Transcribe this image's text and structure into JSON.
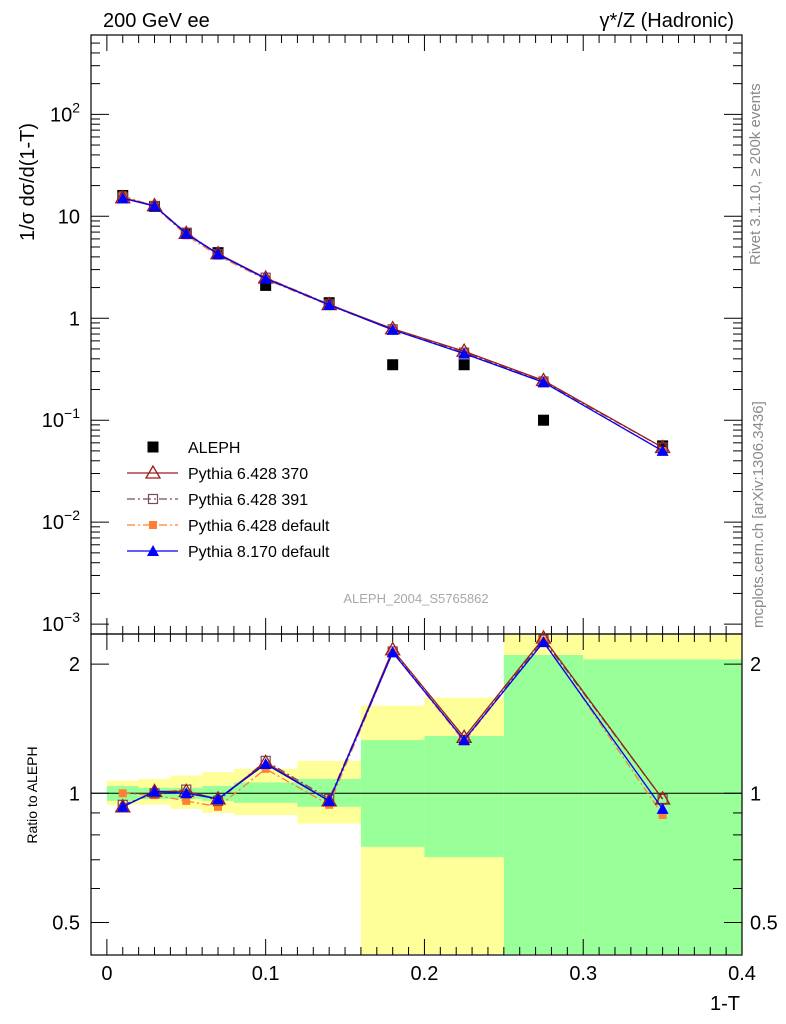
{
  "header": {
    "left": "200 GeV ee",
    "right": "γ*/Z (Hadronic)"
  },
  "side_labels": {
    "top": "Rivet 3.1.10, ≥ 200k events",
    "bottom": "mcplots.cern.ch [arXiv:1306.3436]"
  },
  "watermark": "ALEPH_2004_S5765862",
  "colors": {
    "data": "#000000",
    "p6_370": "#9b1c1c",
    "p6_391": "#7a4a5a",
    "p6_default": "#ff8030",
    "p8_default": "#0000ff",
    "band_outer": "#ffff99",
    "band_inner": "#99ff99"
  },
  "chart_data": [
    {
      "type": "scatter",
      "title": "",
      "ylabel": "1/σ dσ/d(1-T)",
      "xlabel": "",
      "yscale": "log",
      "xlim": [
        -0.01,
        0.4
      ],
      "ylim": [
        0.0008,
        600
      ],
      "yticks": [
        {
          "v": 0.001,
          "base": "10",
          "exp": "−3"
        },
        {
          "v": 0.01,
          "base": "10",
          "exp": "−2"
        },
        {
          "v": 0.1,
          "base": "10",
          "exp": "−1"
        },
        {
          "v": 1,
          "base": "1",
          "exp": ""
        },
        {
          "v": 10,
          "base": "10",
          "exp": ""
        },
        {
          "v": 100,
          "base": "10",
          "exp": "2"
        }
      ],
      "legend_position": "bottom-left",
      "series": [
        {
          "name": "ALEPH",
          "key": "data",
          "marker": "square-filled",
          "line": "none",
          "x": [
            0.01,
            0.03,
            0.05,
            0.07,
            0.1,
            0.14,
            0.18,
            0.225,
            0.275,
            0.35
          ],
          "y": [
            16.0,
            12.5,
            6.8,
            4.4,
            2.1,
            1.42,
            0.35,
            0.35,
            0.1,
            0.056
          ]
        },
        {
          "name": "Pythia 6.428 370",
          "key": "p6_370",
          "marker": "triangle-open",
          "line": "solid",
          "x": [
            0.01,
            0.03,
            0.05,
            0.07,
            0.1,
            0.14,
            0.18,
            0.225,
            0.275,
            0.35
          ],
          "y": [
            15.2,
            12.7,
            6.8,
            4.3,
            2.48,
            1.36,
            0.79,
            0.475,
            0.245,
            0.054
          ]
        },
        {
          "name": "Pythia 6.428 391",
          "key": "p6_391",
          "marker": "square-open",
          "line": "dashdot",
          "x": [
            0.01,
            0.03,
            0.05,
            0.07,
            0.1,
            0.14,
            0.18,
            0.225,
            0.275,
            0.35
          ],
          "y": [
            15.3,
            12.6,
            6.9,
            4.25,
            2.5,
            1.37,
            0.78,
            0.46,
            0.24,
            0.054
          ]
        },
        {
          "name": "Pythia 6.428 default",
          "key": "p6_default",
          "marker": "square-filled-small",
          "line": "dashdot",
          "x": [
            0.01,
            0.03,
            0.05,
            0.07,
            0.1,
            0.14,
            0.18,
            0.225,
            0.275,
            0.35
          ],
          "y": [
            16.0,
            12.5,
            6.5,
            4.1,
            2.4,
            1.34,
            0.77,
            0.46,
            0.24,
            0.05
          ]
        },
        {
          "name": "Pythia 8.170 default",
          "key": "p8_default",
          "marker": "triangle-filled",
          "line": "solid",
          "x": [
            0.01,
            0.03,
            0.05,
            0.07,
            0.1,
            0.14,
            0.18,
            0.225,
            0.275,
            0.35
          ],
          "y": [
            15.0,
            12.6,
            6.75,
            4.25,
            2.45,
            1.35,
            0.77,
            0.45,
            0.235,
            0.05
          ]
        }
      ]
    },
    {
      "type": "scatter",
      "title": "",
      "ylabel": "Ratio to ALEPH",
      "xlabel": "1-T",
      "yscale": "log",
      "xlim": [
        -0.01,
        0.4
      ],
      "ylim": [
        0.42,
        2.35
      ],
      "yticks": [
        0.5,
        1,
        2
      ],
      "xticks": [
        0,
        0.1,
        0.2,
        0.3,
        0.4
      ],
      "reference_line": 1,
      "uncertainty_bands": {
        "bins": [
          [
            0.0,
            0.02
          ],
          [
            0.02,
            0.04
          ],
          [
            0.04,
            0.06
          ],
          [
            0.06,
            0.08
          ],
          [
            0.08,
            0.12
          ],
          [
            0.12,
            0.16
          ],
          [
            0.16,
            0.2
          ],
          [
            0.2,
            0.25
          ],
          [
            0.25,
            0.3
          ],
          [
            0.3,
            0.4
          ]
        ],
        "inner": [
          [
            0.96,
            1.04
          ],
          [
            0.97,
            1.03
          ],
          [
            0.97,
            1.03
          ],
          [
            0.96,
            1.04
          ],
          [
            0.95,
            1.06
          ],
          [
            0.93,
            1.08
          ],
          [
            0.75,
            1.33
          ],
          [
            0.71,
            1.36
          ],
          [
            0.28,
            2.1
          ],
          [
            0.28,
            2.05
          ]
        ],
        "outer": [
          [
            0.94,
            1.07
          ],
          [
            0.94,
            1.08
          ],
          [
            0.92,
            1.1
          ],
          [
            0.9,
            1.12
          ],
          [
            0.89,
            1.14
          ],
          [
            0.85,
            1.19
          ],
          [
            0.37,
            1.6
          ],
          [
            0.37,
            1.67
          ],
          [
            0.28,
            2.35
          ],
          [
            0.28,
            2.35
          ]
        ]
      },
      "series": [
        {
          "name": "Pythia 6.428 370",
          "key": "p6_370",
          "marker": "triangle-open",
          "line": "solid",
          "x": [
            0.01,
            0.03,
            0.05,
            0.07,
            0.1,
            0.14,
            0.18,
            0.225,
            0.275,
            0.35
          ],
          "y": [
            0.93,
            1.01,
            1.01,
            0.97,
            1.18,
            0.96,
            2.16,
            1.35,
            2.3,
            0.97
          ]
        },
        {
          "name": "Pythia 6.428 391",
          "key": "p6_391",
          "marker": "square-open",
          "line": "dashdot",
          "x": [
            0.01,
            0.03,
            0.05,
            0.07,
            0.1,
            0.14,
            0.18,
            0.225,
            0.275,
            0.35
          ],
          "y": [
            0.94,
            1.0,
            1.02,
            0.96,
            1.19,
            0.97,
            2.14,
            1.33,
            2.28,
            0.97
          ]
        },
        {
          "name": "Pythia 6.428 default",
          "key": "p6_default",
          "marker": "square-filled-small",
          "line": "dashdot",
          "x": [
            0.01,
            0.03,
            0.05,
            0.07,
            0.1,
            0.14,
            0.18,
            0.225,
            0.275,
            0.35
          ],
          "y": [
            1.0,
            0.99,
            0.96,
            0.93,
            1.14,
            0.94,
            2.13,
            1.32,
            2.27,
            0.89
          ]
        },
        {
          "name": "Pythia 8.170 default",
          "key": "p8_default",
          "marker": "triangle-filled",
          "line": "solid",
          "x": [
            0.01,
            0.03,
            0.05,
            0.07,
            0.1,
            0.14,
            0.18,
            0.225,
            0.275,
            0.35
          ],
          "y": [
            0.93,
            1.01,
            1.0,
            0.97,
            1.17,
            0.96,
            2.13,
            1.33,
            2.25,
            0.92
          ]
        }
      ]
    }
  ]
}
